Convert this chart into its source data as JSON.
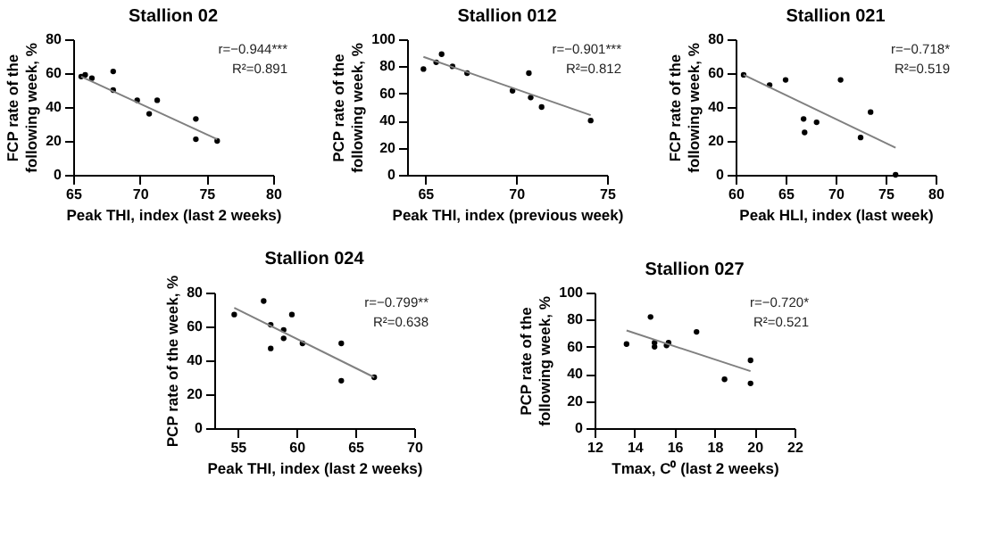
{
  "chart_data": [
    {
      "type": "scatter",
      "title": "Stallion 02",
      "xlabel": "Peak THI, index (last 2 weeks)",
      "ylabel": "FCP rate of the\nfollowing week, %",
      "xlim": [
        65,
        80
      ],
      "xticks": [
        65,
        70,
        75,
        80
      ],
      "ylim": [
        0,
        80
      ],
      "yticks": [
        0,
        20,
        40,
        60,
        80
      ],
      "grid": false,
      "annotations": [
        "r=−0.944***",
        "R²=0.891"
      ],
      "series": [
        {
          "marker": "circle",
          "color": "#000000",
          "x": [
            65.6,
            65.9,
            66.4,
            68,
            68,
            69.8,
            70.7,
            71.3,
            74.2,
            74.2,
            75.8
          ],
          "values": [
            58,
            59,
            57,
            61,
            50,
            44,
            36,
            44,
            33,
            21,
            20
          ]
        },
        {
          "type": "line",
          "color": "#808080",
          "x": [
            65.6,
            75.8
          ],
          "values": [
            58,
            21
          ]
        }
      ]
    },
    {
      "type": "scatter",
      "title": "Stallion 012",
      "xlabel": "Peak THI, index (previous week)",
      "ylabel": "PCP rate of the\nfollowing week, %",
      "xlim": [
        64,
        75
      ],
      "xticks": [
        65,
        70,
        75
      ],
      "ylim": [
        0,
        100
      ],
      "yticks": [
        0,
        20,
        40,
        60,
        80,
        100
      ],
      "grid": false,
      "annotations": [
        "r=−0.901***",
        "R²=0.812"
      ],
      "series": [
        {
          "marker": "circle",
          "color": "#000000",
          "x": [
            64.9,
            65.6,
            65.9,
            66.5,
            67.3,
            69.8,
            70.7,
            70.8,
            71.4,
            74.1
          ],
          "values": [
            78,
            83,
            89,
            80,
            75,
            62,
            75,
            57,
            50,
            40
          ]
        },
        {
          "type": "line",
          "color": "#808080",
          "x": [
            64.9,
            74.1
          ],
          "values": [
            87,
            44
          ]
        }
      ]
    },
    {
      "type": "scatter",
      "title": "Stallion 021",
      "xlabel": "Peak HLI, index (last week)",
      "ylabel": "FCP rate of the\nfollowing week, %",
      "xlim": [
        60,
        80
      ],
      "xticks": [
        60,
        65,
        70,
        75,
        80
      ],
      "ylim": [
        0,
        80
      ],
      "yticks": [
        0,
        20,
        40,
        60,
        80
      ],
      "grid": false,
      "annotations": [
        "r=−0.718*",
        "R²=0.519"
      ],
      "series": [
        {
          "marker": "circle",
          "color": "#000000",
          "x": [
            60.8,
            63.4,
            65,
            66.8,
            66.9,
            68.1,
            70.5,
            72.5,
            73.5,
            76
          ],
          "values": [
            59,
            53,
            56,
            33,
            25,
            31,
            56,
            22,
            37,
            0
          ]
        },
        {
          "type": "line",
          "color": "#808080",
          "x": [
            60.8,
            76
          ],
          "values": [
            59,
            16
          ]
        }
      ]
    },
    {
      "type": "scatter",
      "title": "Stallion 024",
      "xlabel": "Peak THI, index (last 2 weeks)",
      "ylabel": "PCP rate of the week, %",
      "xlim": [
        53,
        70
      ],
      "xticks": [
        55,
        60,
        65,
        70
      ],
      "ylim": [
        0,
        80
      ],
      "yticks": [
        0,
        20,
        40,
        60,
        80
      ],
      "grid": false,
      "annotations": [
        "r=−0.799**",
        "R²=0.638"
      ],
      "series": [
        {
          "marker": "circle",
          "color": "#000000",
          "x": [
            54.7,
            57.2,
            57.8,
            57.8,
            58.9,
            58.9,
            59.6,
            60.5,
            63.8,
            63.8,
            66.6
          ],
          "values": [
            67,
            75,
            61,
            47,
            58,
            53,
            67,
            50,
            50,
            28,
            30
          ]
        },
        {
          "type": "line",
          "color": "#808080",
          "x": [
            54.7,
            66.6
          ],
          "values": [
            71,
            30
          ]
        }
      ]
    },
    {
      "type": "scatter",
      "title": "Stallion 027",
      "xlabel": "Tmax, C⁰ (last 2 weeks)",
      "ylabel": "PCP rate of the\nfollowing week, %",
      "xlim": [
        12,
        22
      ],
      "xticks": [
        12,
        14,
        16,
        18,
        20,
        22
      ],
      "ylim": [
        0,
        100
      ],
      "yticks": [
        0,
        20,
        40,
        60,
        80,
        100
      ],
      "grid": false,
      "annotations": [
        "r=−0.720*",
        "R²=0.521"
      ],
      "series": [
        {
          "marker": "circle",
          "color": "#000000",
          "x": [
            13.6,
            14.8,
            15,
            15,
            15.6,
            15.7,
            17.1,
            18.5,
            19.8,
            19.8
          ],
          "values": [
            62,
            82,
            63,
            60,
            61,
            63,
            71,
            36,
            50,
            33
          ]
        },
        {
          "type": "line",
          "color": "#808080",
          "x": [
            13.6,
            19.8
          ],
          "values": [
            72,
            42
          ]
        }
      ]
    }
  ]
}
